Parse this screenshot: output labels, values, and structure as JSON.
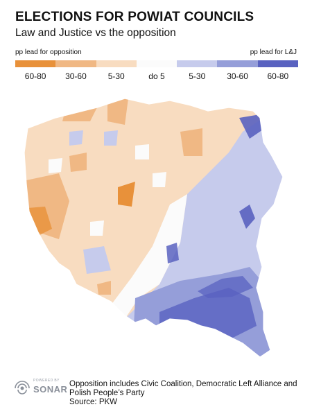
{
  "header": {
    "title": "ELECTIONS FOR POWIAT COUNCILS",
    "subtitle": "Law and Justice vs the opposition"
  },
  "legend": {
    "left_label": "pp lead for opposition",
    "right_label": "pp lead for L&J",
    "bins": [
      {
        "label": "60-80",
        "color": "#e8913a"
      },
      {
        "label": "30-60",
        "color": "#f0b884"
      },
      {
        "label": "5-30",
        "color": "#f8dcc0"
      },
      {
        "label": "do 5",
        "color": "#fbfbfb"
      },
      {
        "label": "5-30",
        "color": "#c6cbec"
      },
      {
        "label": "30-60",
        "color": "#959ed9"
      },
      {
        "label": "60-80",
        "color": "#5962c0"
      }
    ]
  },
  "logo": {
    "top_text": "POWERED BY",
    "name": "SONAR"
  },
  "footnote": {
    "text": "Opposition includes Civic Coalition, Democratic Left Alliance and Polish People’s Party",
    "source": "Source: PKW"
  }
}
